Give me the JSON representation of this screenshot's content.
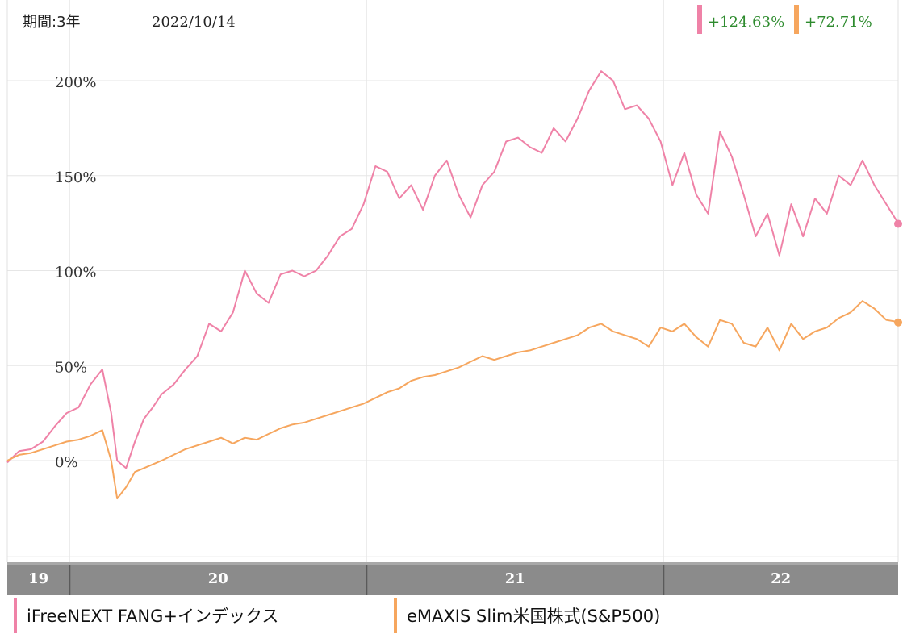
{
  "header": {
    "period_label": "期間:3年",
    "date": "2022/10/14"
  },
  "chart_data": {
    "type": "line",
    "ylim": [
      -50,
      225
    ],
    "y_ticks": [
      {
        "value": 200,
        "label": "200%"
      },
      {
        "value": 150,
        "label": "150%"
      },
      {
        "value": 100,
        "label": "100%"
      },
      {
        "value": 50,
        "label": "50%"
      },
      {
        "value": 0,
        "label": "0%"
      }
    ],
    "x_ticks": [
      {
        "position": 2019.0,
        "label": "19"
      },
      {
        "position": 2020.0,
        "label": "20"
      },
      {
        "position": 2021.0,
        "label": "21"
      },
      {
        "position": 2022.0,
        "label": "22"
      }
    ],
    "x_range": [
      2019.79,
      2022.79
    ],
    "grid": true,
    "series": [
      {
        "name": "iFreeNEXT FANG+インデックス",
        "color": "#ef82a7",
        "final_change": "+124.63%",
        "x": [
          2019.79,
          2019.83,
          2019.87,
          2019.91,
          2019.95,
          2019.99,
          2020.03,
          2020.07,
          2020.11,
          2020.14,
          2020.16,
          2020.19,
          2020.22,
          2020.25,
          2020.28,
          2020.31,
          2020.35,
          2020.39,
          2020.43,
          2020.47,
          2020.51,
          2020.55,
          2020.59,
          2020.63,
          2020.67,
          2020.71,
          2020.75,
          2020.79,
          2020.83,
          2020.87,
          2020.91,
          2020.95,
          2020.99,
          2021.03,
          2021.07,
          2021.11,
          2021.15,
          2021.19,
          2021.23,
          2021.27,
          2021.31,
          2021.35,
          2021.39,
          2021.43,
          2021.47,
          2021.51,
          2021.55,
          2021.59,
          2021.63,
          2021.67,
          2021.71,
          2021.75,
          2021.79,
          2021.83,
          2021.87,
          2021.91,
          2021.95,
          2021.99,
          2022.03,
          2022.07,
          2022.11,
          2022.15,
          2022.19,
          2022.23,
          2022.27,
          2022.31,
          2022.35,
          2022.39,
          2022.43,
          2022.47,
          2022.51,
          2022.55,
          2022.59,
          2022.63,
          2022.67,
          2022.71,
          2022.75,
          2022.79
        ],
        "values": [
          -1,
          5,
          6,
          10,
          18,
          25,
          28,
          40,
          48,
          25,
          0,
          -4,
          10,
          22,
          28,
          35,
          40,
          48,
          55,
          72,
          68,
          78,
          100,
          88,
          83,
          98,
          100,
          97,
          100,
          108,
          118,
          122,
          135,
          155,
          152,
          138,
          145,
          132,
          150,
          158,
          140,
          128,
          145,
          152,
          168,
          170,
          165,
          162,
          175,
          168,
          180,
          195,
          205,
          200,
          185,
          187,
          180,
          168,
          145,
          162,
          140,
          130,
          173,
          160,
          140,
          118,
          130,
          108,
          135,
          118,
          138,
          130,
          150,
          145,
          158,
          145,
          135,
          125
        ],
        "final_value": 124.63
      },
      {
        "name": "eMAXIS Slim米国株式(S&P500)",
        "color": "#f6a65e",
        "final_change": "+72.71%",
        "x": [
          2019.79,
          2019.83,
          2019.87,
          2019.91,
          2019.95,
          2019.99,
          2020.03,
          2020.07,
          2020.11,
          2020.14,
          2020.16,
          2020.19,
          2020.22,
          2020.25,
          2020.28,
          2020.31,
          2020.35,
          2020.39,
          2020.43,
          2020.47,
          2020.51,
          2020.55,
          2020.59,
          2020.63,
          2020.67,
          2020.71,
          2020.75,
          2020.79,
          2020.83,
          2020.87,
          2020.91,
          2020.95,
          2020.99,
          2021.03,
          2021.07,
          2021.11,
          2021.15,
          2021.19,
          2021.23,
          2021.27,
          2021.31,
          2021.35,
          2021.39,
          2021.43,
          2021.47,
          2021.51,
          2021.55,
          2021.59,
          2021.63,
          2021.67,
          2021.71,
          2021.75,
          2021.79,
          2021.83,
          2021.87,
          2021.91,
          2021.95,
          2021.99,
          2022.03,
          2022.07,
          2022.11,
          2022.15,
          2022.19,
          2022.23,
          2022.27,
          2022.31,
          2022.35,
          2022.39,
          2022.43,
          2022.47,
          2022.51,
          2022.55,
          2022.59,
          2022.63,
          2022.67,
          2022.71,
          2022.75,
          2022.79
        ],
        "values": [
          0,
          3,
          4,
          6,
          8,
          10,
          11,
          13,
          16,
          0,
          -20,
          -14,
          -6,
          -4,
          -2,
          0,
          3,
          6,
          8,
          10,
          12,
          9,
          12,
          11,
          14,
          17,
          19,
          20,
          22,
          24,
          26,
          28,
          30,
          33,
          36,
          38,
          42,
          44,
          45,
          47,
          49,
          52,
          55,
          53,
          55,
          57,
          58,
          60,
          62,
          64,
          66,
          70,
          72,
          68,
          66,
          64,
          60,
          70,
          68,
          72,
          65,
          60,
          74,
          72,
          62,
          60,
          70,
          58,
          72,
          64,
          68,
          70,
          75,
          78,
          84,
          80,
          74,
          73
        ],
        "final_value": 72.71
      }
    ]
  }
}
